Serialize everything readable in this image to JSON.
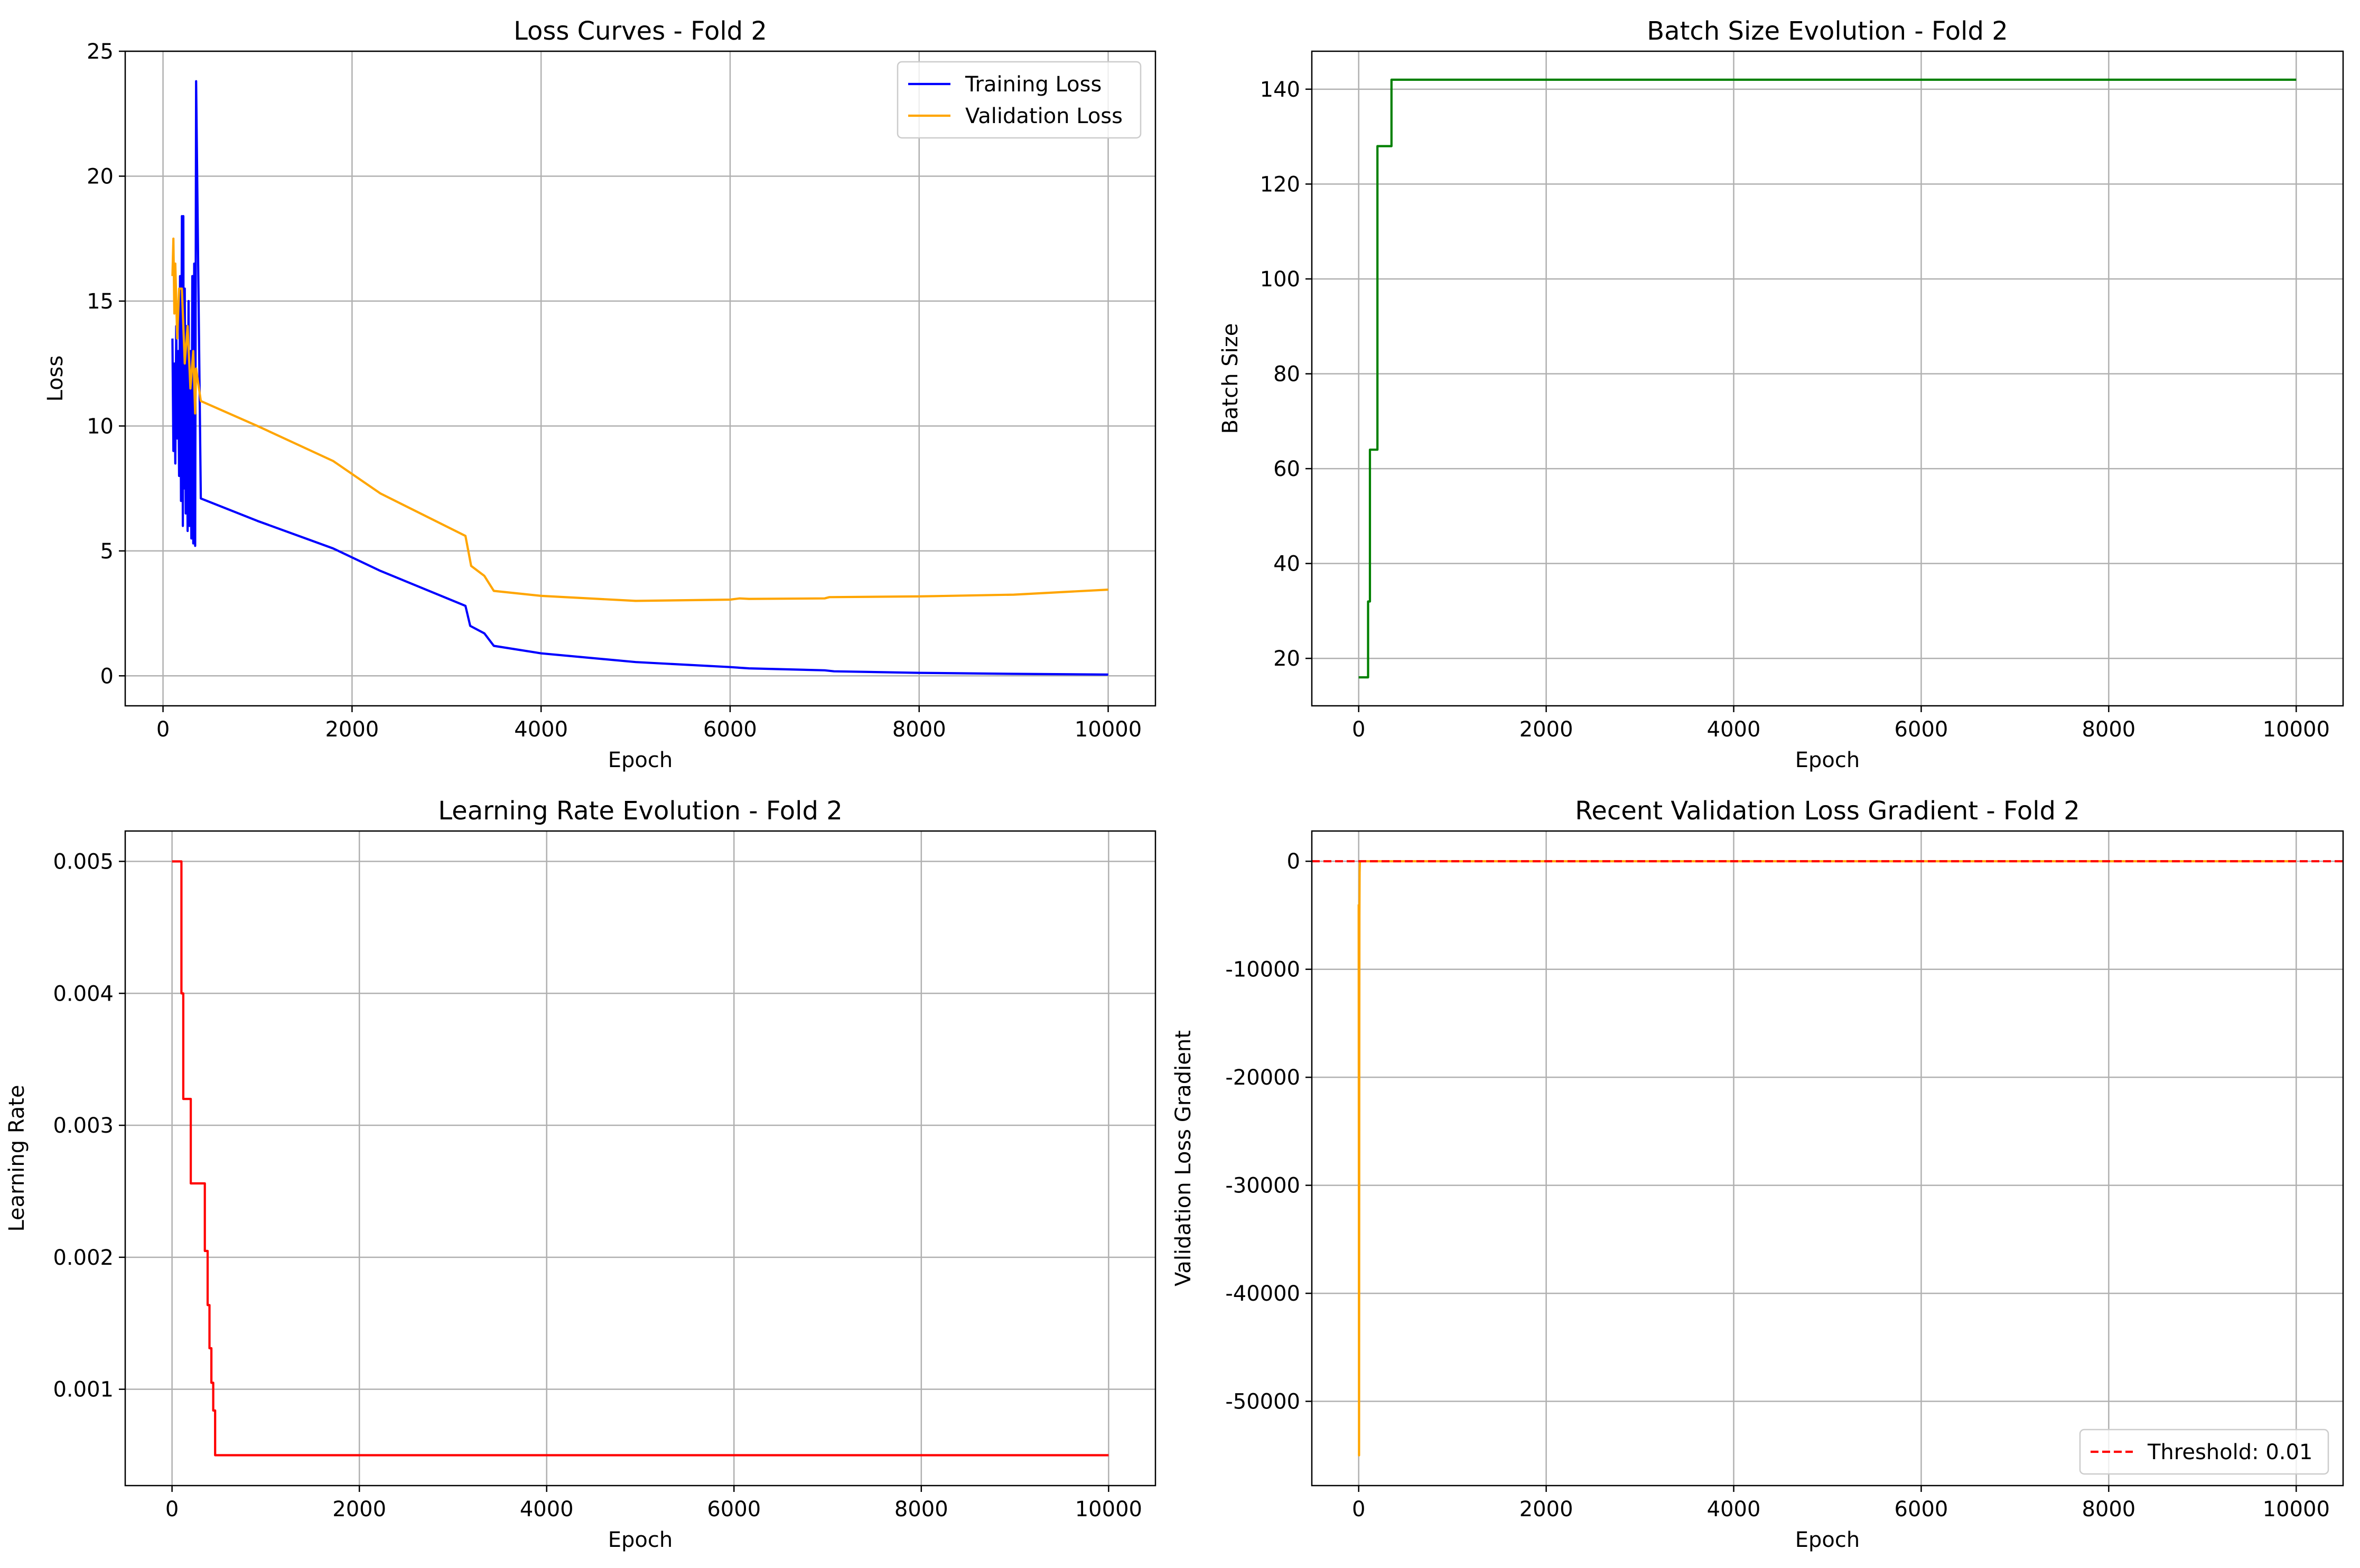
{
  "chart_data": [
    {
      "type": "line",
      "title": "Loss Curves - Fold 2",
      "xlabel": "Epoch",
      "ylabel": "Loss",
      "xlim": [
        -400,
        10500
      ],
      "ylim": [
        -1.2,
        25
      ],
      "xticks": [
        0,
        2000,
        4000,
        6000,
        8000,
        10000
      ],
      "yticks": [
        0,
        5,
        10,
        15,
        20,
        25
      ],
      "grid": true,
      "legend": "top-right",
      "series": [
        {
          "name": "Training Loss",
          "color": "#0000ff",
          "x": [
            100,
            110,
            120,
            130,
            140,
            150,
            160,
            170,
            180,
            190,
            200,
            210,
            215,
            220,
            230,
            240,
            250,
            260,
            270,
            280,
            290,
            300,
            310,
            320,
            330,
            340,
            350,
            400,
            1000,
            1800,
            2300,
            3200,
            3250,
            3400,
            3500,
            4000,
            5000,
            6000,
            6200,
            7000,
            7100,
            8000,
            9000,
            10000
          ],
          "y": [
            13.5,
            9.0,
            12.5,
            8.5,
            14.0,
            9.5,
            13.0,
            8.0,
            16.0,
            7.0,
            18.4,
            6.0,
            18.4,
            7.5,
            15.5,
            6.5,
            14.0,
            5.8,
            15.0,
            6.0,
            13.0,
            5.5,
            16.0,
            5.3,
            16.5,
            5.2,
            23.8,
            7.1,
            6.2,
            5.1,
            4.2,
            2.8,
            2.0,
            1.7,
            1.2,
            0.9,
            0.55,
            0.35,
            0.3,
            0.22,
            0.18,
            0.12,
            0.08,
            0.05
          ]
        },
        {
          "name": "Validation Loss",
          "color": "#ffa500",
          "x": [
            100,
            110,
            120,
            130,
            150,
            170,
            200,
            230,
            260,
            290,
            320,
            340,
            350,
            400,
            1000,
            1800,
            2300,
            3200,
            3260,
            3400,
            3500,
            4000,
            5000,
            6000,
            6100,
            6200,
            7000,
            7050,
            8000,
            9000,
            10000
          ],
          "y": [
            16.0,
            17.5,
            14.5,
            16.5,
            13.5,
            15.5,
            15.5,
            12.5,
            14.0,
            11.5,
            13.0,
            10.5,
            12.3,
            11.0,
            10.0,
            8.6,
            7.3,
            5.6,
            4.4,
            4.0,
            3.4,
            3.2,
            3.0,
            3.05,
            3.1,
            3.08,
            3.1,
            3.15,
            3.18,
            3.25,
            3.45
          ]
        }
      ]
    },
    {
      "type": "line",
      "title": "Batch Size Evolution - Fold 2",
      "xlabel": "Epoch",
      "ylabel": "Batch Size",
      "xlim": [
        -500,
        10500
      ],
      "ylim": [
        10,
        148
      ],
      "xticks": [
        0,
        2000,
        4000,
        6000,
        8000,
        10000
      ],
      "yticks": [
        20,
        40,
        60,
        80,
        100,
        120,
        140
      ],
      "grid": true,
      "series": [
        {
          "color": "#008000",
          "x": [
            0,
            100,
            100,
            120,
            120,
            200,
            200,
            350,
            350,
            10000
          ],
          "y": [
            16,
            16,
            32,
            32,
            64,
            64,
            128,
            128,
            142,
            142
          ]
        }
      ]
    },
    {
      "type": "line",
      "title": "Learning Rate Evolution - Fold 2",
      "xlabel": "Epoch",
      "ylabel": "Learning Rate",
      "xlim": [
        -500,
        10500
      ],
      "ylim": [
        0.00027,
        0.00523
      ],
      "xticks": [
        0,
        2000,
        4000,
        6000,
        8000,
        10000
      ],
      "yticks": [
        0.001,
        0.002,
        0.003,
        0.004,
        0.005
      ],
      "grid": true,
      "series": [
        {
          "color": "#ff0000",
          "x": [
            0,
            100,
            100,
            120,
            120,
            200,
            200,
            350,
            350,
            380,
            380,
            400,
            400,
            420,
            420,
            440,
            440,
            460,
            460,
            10000
          ],
          "y": [
            0.005,
            0.005,
            0.004,
            0.004,
            0.0032,
            0.0032,
            0.00256,
            0.00256,
            0.002048,
            0.002048,
            0.001638,
            0.001638,
            0.001311,
            0.001311,
            0.001049,
            0.001049,
            0.000839,
            0.000839,
            0.0005,
            0.0005
          ]
        }
      ]
    },
    {
      "type": "line",
      "title": "Recent Validation Loss Gradient - Fold 2",
      "xlabel": "Epoch",
      "ylabel": "Validation Loss Gradient",
      "xlim": [
        -500,
        10500
      ],
      "ylim": [
        -57800,
        2800
      ],
      "xticks": [
        0,
        2000,
        4000,
        6000,
        8000,
        10000
      ],
      "yticks": [
        0,
        -10000,
        -20000,
        -30000,
        -40000,
        -50000
      ],
      "grid": true,
      "legend": "bottom-right",
      "series": [
        {
          "color": "#ffa500",
          "x": [
            0,
            2,
            4,
            6,
            8,
            10,
            12,
            14,
            16,
            10000
          ],
          "y": [
            -4000,
            -30000,
            -55000,
            -20000,
            -5000,
            -1000,
            -200,
            -50,
            0,
            0
          ]
        },
        {
          "name": "Threshold: 0.01",
          "color": "#ff0000",
          "dashed": true,
          "x": [
            -500,
            10500
          ],
          "y": [
            0.01,
            0.01
          ]
        }
      ]
    }
  ]
}
